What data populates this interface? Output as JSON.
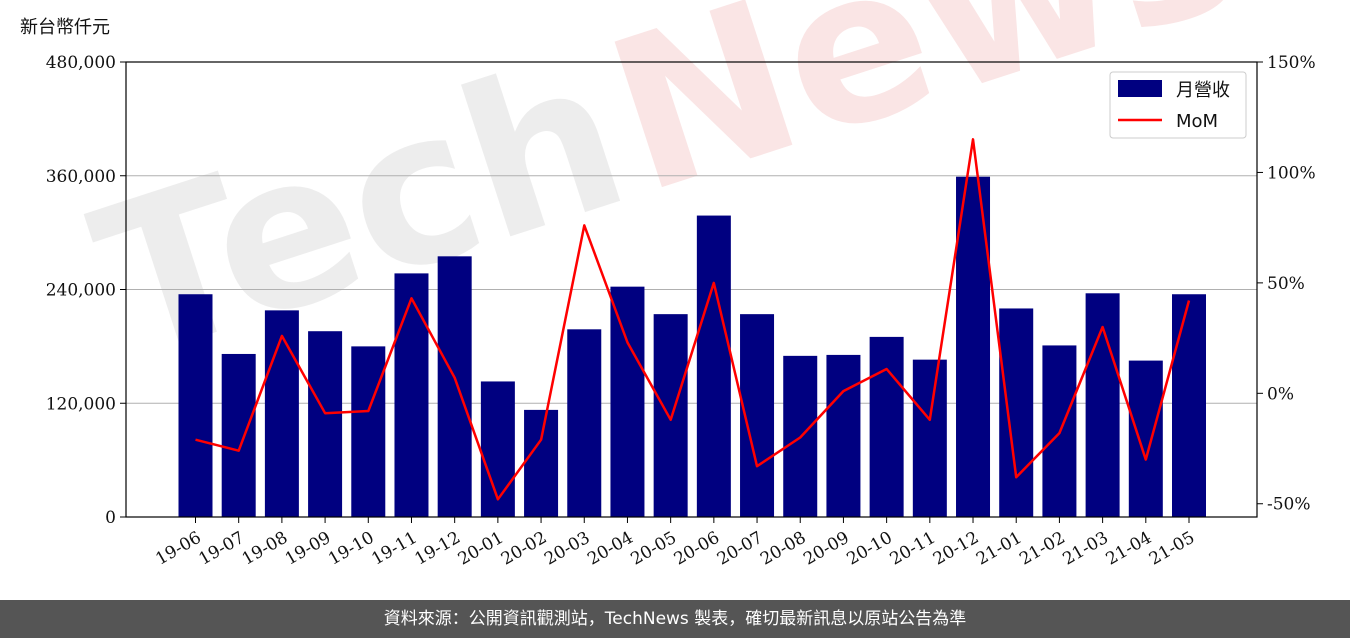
{
  "unit_label": "新台幣仟元",
  "watermark": {
    "part1": "Tech",
    "part2": "News"
  },
  "footer": {
    "text": "資料來源：公開資訊觀測站，TechNews 製表，確切最新訊息以原站公告為準"
  },
  "colors": {
    "bar": "#000080",
    "line": "#ff0000",
    "footer_bg": "#555555"
  },
  "chart_data": {
    "type": "bar+line",
    "categories": [
      "19-06",
      "19-07",
      "19-08",
      "19-09",
      "19-10",
      "19-11",
      "19-12",
      "20-01",
      "20-02",
      "20-03",
      "20-04",
      "20-05",
      "20-06",
      "20-07",
      "20-08",
      "20-09",
      "20-10",
      "20-11",
      "20-12",
      "21-01",
      "21-02",
      "21-03",
      "21-04",
      "21-05"
    ],
    "series": [
      {
        "name": "月營收",
        "axis": "left",
        "kind": "bar",
        "values": [
          235000,
          172000,
          218000,
          196000,
          180000,
          257000,
          275000,
          143000,
          113000,
          198000,
          243000,
          214000,
          318000,
          214000,
          170000,
          171000,
          190000,
          166000,
          359000,
          220000,
          181000,
          236000,
          165000,
          235000
        ]
      },
      {
        "name": "MoM",
        "axis": "right",
        "kind": "line",
        "values": [
          -21,
          -26,
          26,
          -9,
          -8,
          43,
          7,
          -48,
          -21,
          76,
          23,
          -12,
          50,
          -33,
          -20,
          1,
          11,
          -12,
          115,
          -38,
          -18,
          30,
          -30,
          42
        ]
      }
    ],
    "left_axis": {
      "ylim": [
        0,
        480000
      ],
      "ticks": [
        0,
        120000,
        240000,
        360000,
        480000
      ],
      "tick_labels": [
        "0",
        "120,000",
        "240,000",
        "360,000",
        "480,000"
      ]
    },
    "right_axis": {
      "ylim": [
        -56,
        150
      ],
      "ticks": [
        -50,
        0,
        50,
        100,
        150
      ],
      "tick_labels": [
        "-50%",
        "0%",
        "50%",
        "100%",
        "150%"
      ]
    },
    "grid": true,
    "legend": {
      "placement": "top-right",
      "entries": [
        "月營收",
        "MoM"
      ]
    }
  }
}
